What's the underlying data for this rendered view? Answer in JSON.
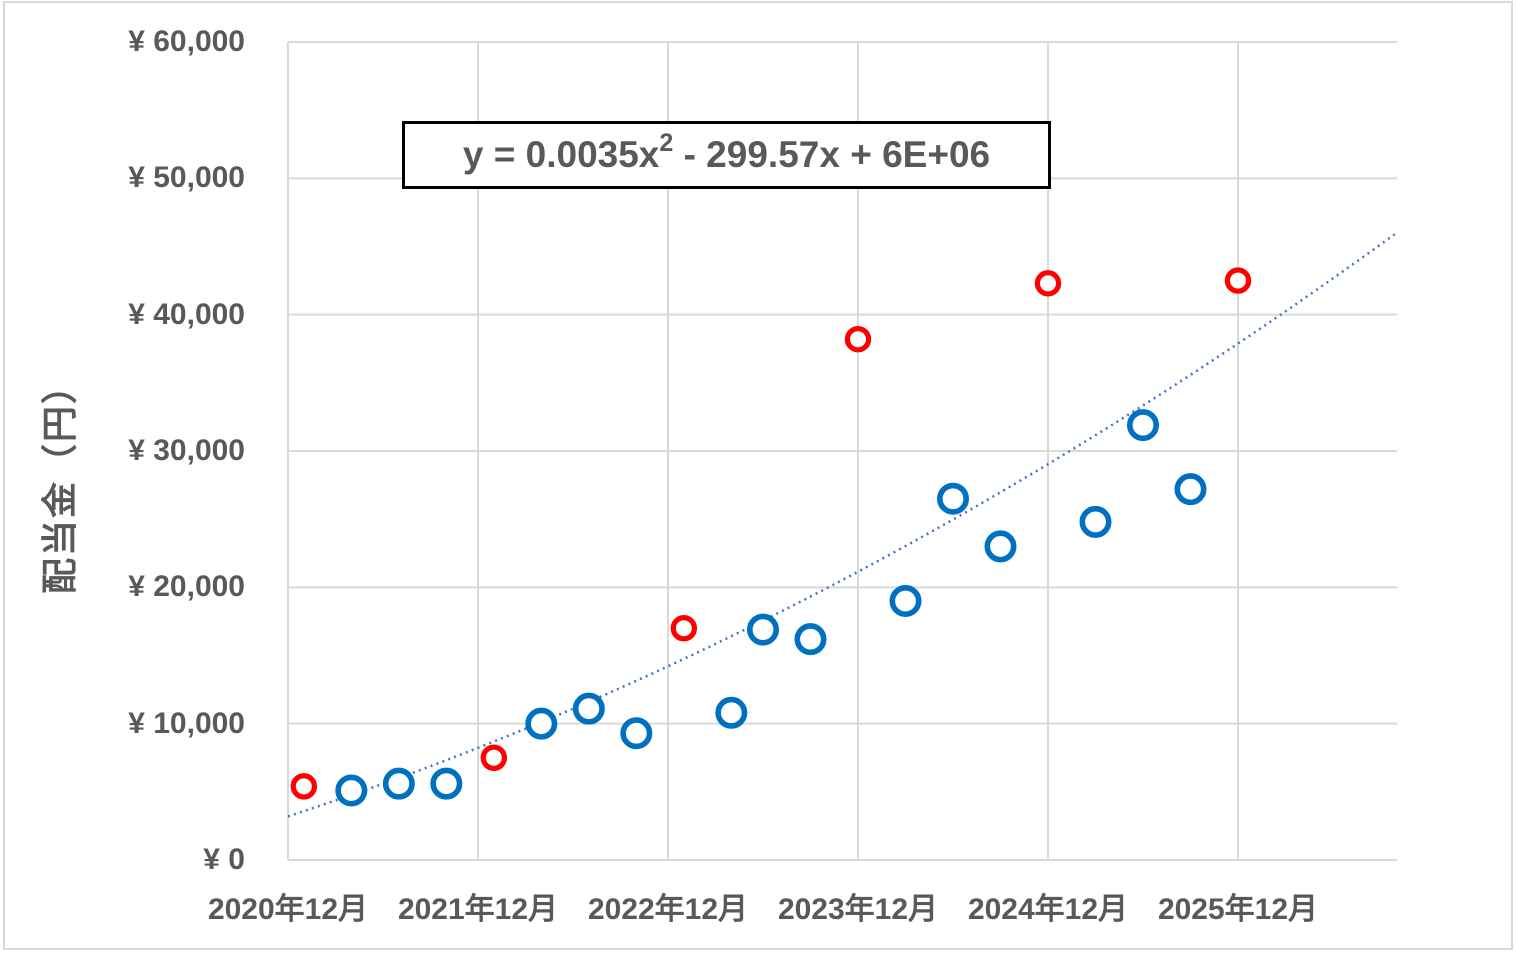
{
  "page": {
    "background": "#ffffff",
    "frame_border_color": "#d9d9d9"
  },
  "chart_data": {
    "type": "scatter",
    "title": "",
    "xlabel": "",
    "ylabel": "配当金（円）",
    "ylim": [
      0,
      60000
    ],
    "y_tick_step": 10000,
    "grid": true,
    "legend": "none",
    "y_tick_labels": [
      "¥ 0",
      "¥ 10,000",
      "¥ 20,000",
      "¥ 30,000",
      "¥ 40,000",
      "¥ 50,000",
      "¥ 60,000"
    ],
    "x_tick_labels": [
      "2020年12月",
      "2021年12月",
      "2022年12月",
      "2023年12月",
      "2024年12月",
      "2025年12月"
    ],
    "x_axis_type": "date, one gridline per year (Dec), plot extends ~10 months past 2025-12",
    "colors": {
      "grid": "#d9d9d9",
      "text": "#595959",
      "blue_marker": "#0070c0",
      "red_marker": "#ff0000",
      "trendline": "#4472c4",
      "equation_border": "#000000"
    },
    "series": [
      {
        "name": "blue",
        "marker": "open-circle",
        "color": "#0070c0",
        "points": [
          {
            "x": "2021-04",
            "y": 5100
          },
          {
            "x": "2021-07",
            "y": 5600
          },
          {
            "x": "2021-10",
            "y": 5600
          },
          {
            "x": "2022-04",
            "y": 10000
          },
          {
            "x": "2022-07",
            "y": 11100
          },
          {
            "x": "2022-10",
            "y": 9300
          },
          {
            "x": "2023-04",
            "y": 10800
          },
          {
            "x": "2023-06",
            "y": 16900
          },
          {
            "x": "2023-09",
            "y": 16200
          },
          {
            "x": "2024-03",
            "y": 19000
          },
          {
            "x": "2024-06",
            "y": 26500
          },
          {
            "x": "2024-09",
            "y": 23000
          },
          {
            "x": "2025-03",
            "y": 24800
          },
          {
            "x": "2025-06",
            "y": 31900
          },
          {
            "x": "2025-09",
            "y": 27200
          }
        ]
      },
      {
        "name": "red",
        "marker": "open-circle",
        "color": "#ff0000",
        "points": [
          {
            "x": "2021-01",
            "y": 5400
          },
          {
            "x": "2022-01",
            "y": 7500
          },
          {
            "x": "2023-01",
            "y": 17000
          },
          {
            "x": "2023-12",
            "y": 38200
          },
          {
            "x": "2024-12",
            "y": 42300
          },
          {
            "x": "2025-12",
            "y": 42500
          }
        ]
      }
    ],
    "trendline": {
      "style": "dotted",
      "color": "#4472c4",
      "equation": "y = 0.0035x² - 299.57x + 6E+06",
      "equation_parts": {
        "prefix": "y = 0.0035x",
        "sup": "2",
        "suffix": " - 299.57x + 6E+06"
      },
      "x_start_months": 0,
      "y_start": 3200,
      "x_mid_months": 34.95,
      "y_mid": 20500,
      "x_end_months": 69.9,
      "y_end": 45900
    }
  }
}
